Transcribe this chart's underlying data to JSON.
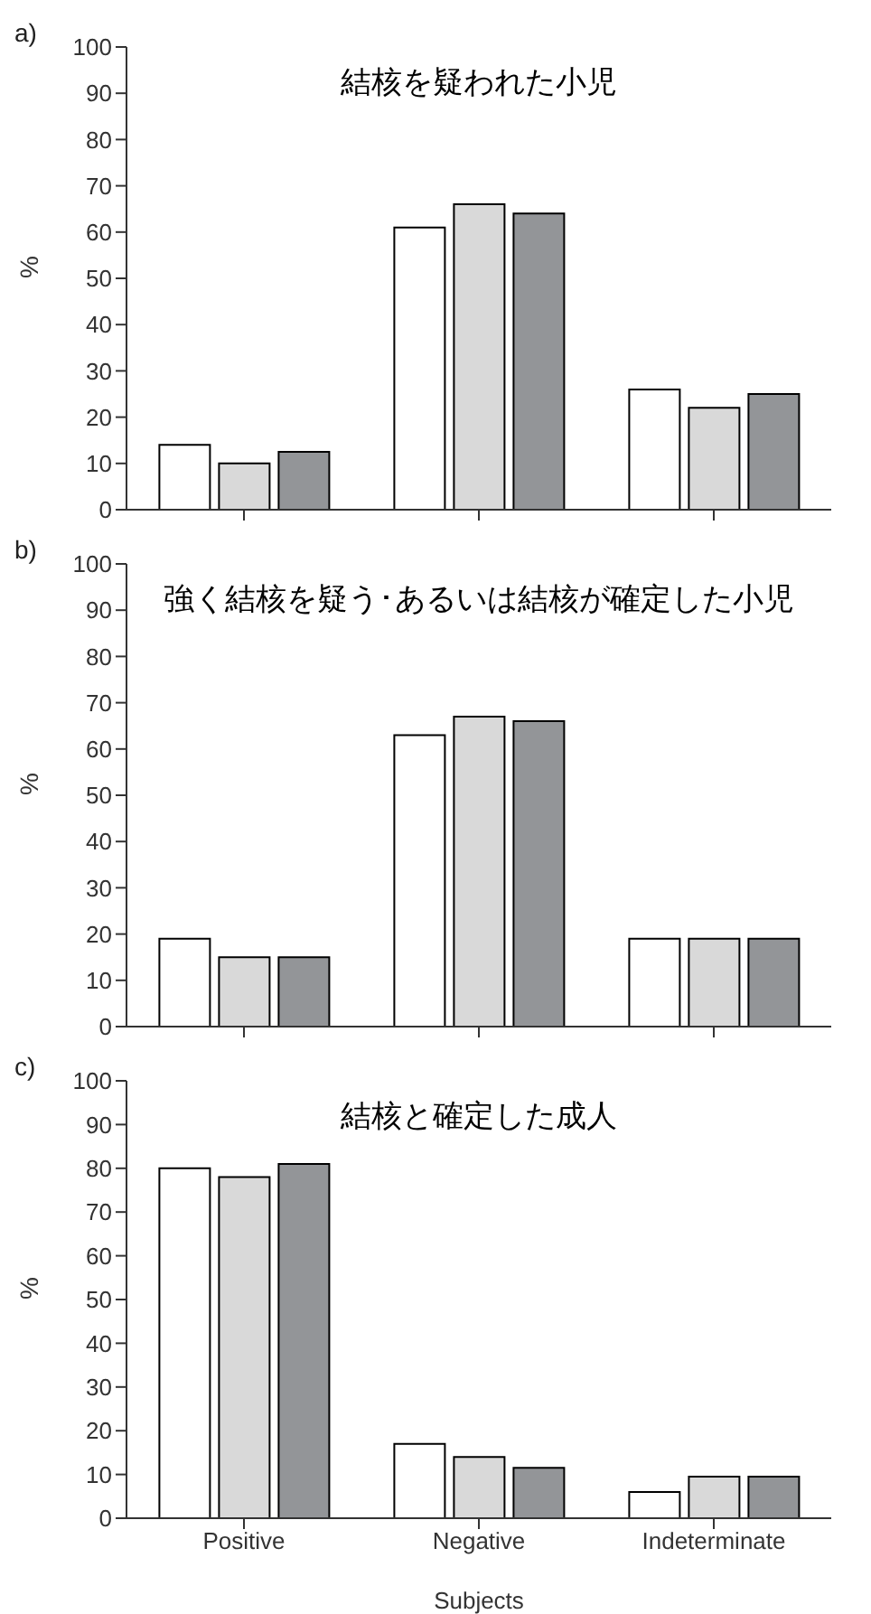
{
  "chart_data": [
    {
      "type": "bar",
      "title": "結核を疑われた小児",
      "annotations": [
        "a)"
      ],
      "ylabel": "%",
      "categories": [
        null,
        null,
        null
      ],
      "ylim": [
        0,
        100
      ],
      "yticks": [
        0,
        10,
        20,
        30,
        40,
        50,
        60,
        70,
        80,
        90,
        100
      ],
      "tick_labels": "y",
      "series": [
        {
          "color": "#ffffff",
          "values": [
            14,
            61,
            26
          ]
        },
        {
          "color": "#d9d9d9",
          "values": [
            10,
            66,
            22
          ]
        },
        {
          "color": "#939598",
          "values": [
            12.5,
            64,
            25
          ]
        }
      ]
    },
    {
      "type": "bar",
      "title": "強く結核を疑う･あるいは結核が確定した小児",
      "annotations": [
        "b)"
      ],
      "ylabel": "%",
      "categories": [
        null,
        null,
        null
      ],
      "ylim": [
        0,
        100
      ],
      "yticks": [
        0,
        10,
        20,
        30,
        40,
        50,
        60,
        70,
        80,
        90,
        100
      ],
      "tick_labels": "y",
      "series": [
        {
          "color": "#ffffff",
          "values": [
            19,
            63,
            19
          ]
        },
        {
          "color": "#d9d9d9",
          "values": [
            15,
            67,
            19
          ]
        },
        {
          "color": "#939598",
          "values": [
            15,
            66,
            19
          ]
        }
      ]
    },
    {
      "type": "bar",
      "title": "結核と確定した成人",
      "annotations": [
        "c)"
      ],
      "ylabel": "%",
      "xlabel": "Subjects",
      "categories": [
        "Positive",
        "Negative",
        "Indeterminate"
      ],
      "ylim": [
        0,
        100
      ],
      "yticks": [
        0,
        10,
        20,
        30,
        40,
        50,
        60,
        70,
        80,
        90,
        100
      ],
      "series": [
        {
          "color": "#ffffff",
          "values": [
            80,
            17,
            6
          ]
        },
        {
          "color": "#d9d9d9",
          "values": [
            78,
            14,
            9.5
          ]
        },
        {
          "color": "#939598",
          "values": [
            81,
            11.5,
            9.5
          ]
        }
      ]
    }
  ]
}
